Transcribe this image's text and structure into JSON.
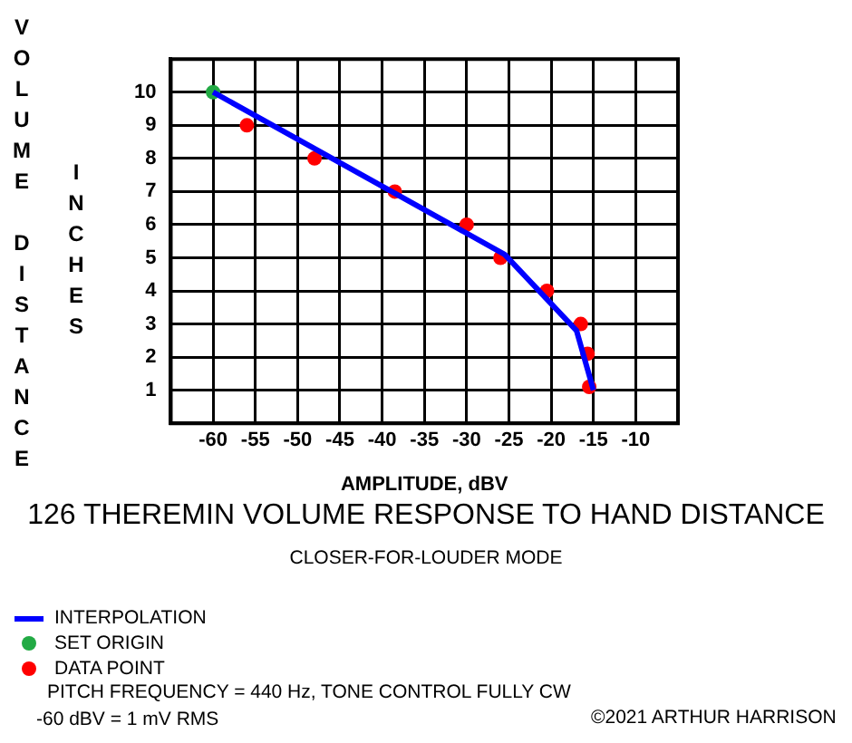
{
  "chart_data": {
    "type": "line",
    "title": "126 THEREMIN VOLUME RESPONSE TO HAND DISTANCE",
    "subtitle": "CLOSER-FOR-LOUDER MODE",
    "xlabel": "AMPLITUDE, dBV",
    "ylabel": "VOLUME DISTANCE",
    "annotations": [
      "INCHES",
      "PITCH FREQUENCY = 440 Hz, TONE CONTROL FULLY CW",
      "-60 dBV = 1 mV RMS",
      "©2021 ARTHUR HARRISON"
    ],
    "xlim": [
      -65,
      -5
    ],
    "xticks": [
      -60,
      -55,
      -50,
      -45,
      -40,
      -35,
      -30,
      -25,
      -20,
      -15,
      -10
    ],
    "ylim": [
      0,
      11
    ],
    "yticks": [
      1,
      2,
      3,
      4,
      5,
      6,
      7,
      8,
      9,
      10
    ],
    "grid": true,
    "legend": "bottom left",
    "series": [
      {
        "name": "INTERPOLATION",
        "color": "#0000ff",
        "marker": "none",
        "line_style": "solid",
        "x": [
          -60,
          -25.5,
          -17,
          -15
        ],
        "values": [
          10,
          5.1,
          2.8,
          1
        ]
      },
      {
        "name": "SET ORIGIN",
        "type": "scatter",
        "color": "#22aa44",
        "marker": "circle",
        "x": [
          -60
        ],
        "values": [
          10
        ]
      },
      {
        "name": "DATA POINT",
        "type": "scatter",
        "color": "#ff0000",
        "marker": "circle",
        "x": [
          -56,
          -48,
          -38.5,
          -30,
          -26,
          -20.5,
          -16.5,
          -15.7,
          -15.5
        ],
        "values": [
          9,
          8,
          7,
          6,
          5,
          4,
          3,
          2.1,
          1.1
        ]
      }
    ]
  }
}
